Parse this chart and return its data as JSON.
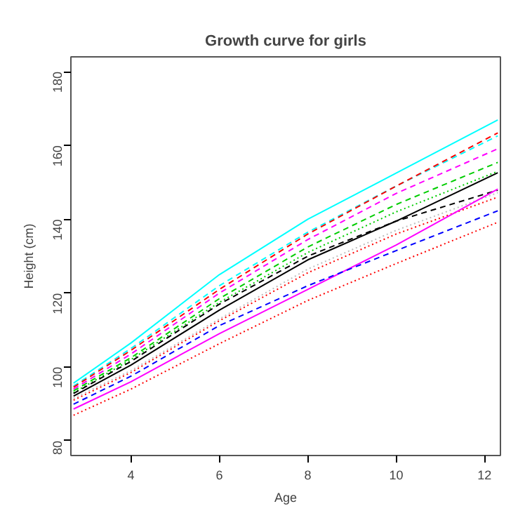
{
  "chart_data": {
    "type": "line",
    "title": "Growth curve for girls",
    "xlabel": "Age",
    "ylabel": "Height (cm)",
    "x": [
      2.7,
      4,
      6,
      8,
      10,
      12.3
    ],
    "xlim": [
      2.64,
      12.36
    ],
    "ylim": [
      76,
      184
    ],
    "xticks": [
      4,
      6,
      8,
      10,
      12
    ],
    "yticks": [
      80,
      100,
      120,
      140,
      160,
      180
    ],
    "grid": false,
    "series": [
      {
        "color": "#00ffff",
        "line_style": "solid",
        "values": [
          95.6,
          106.5,
          125,
          140,
          152.5,
          166.9
        ]
      },
      {
        "color": "#00ffff",
        "line_style": "dashed",
        "values": [
          94.8,
          105,
          122,
          136.5,
          149,
          162.6
        ]
      },
      {
        "color": "#ff0000",
        "line_style": "dashed",
        "values": [
          94.5,
          104.5,
          121,
          136,
          149,
          163.4
        ]
      },
      {
        "color": "#ff00ff",
        "line_style": "dashed",
        "values": [
          94,
          103.5,
          120,
          134.5,
          147,
          159.1
        ]
      },
      {
        "color": "#00cd00",
        "line_style": "dashed",
        "values": [
          93.5,
          102.5,
          118.5,
          132.5,
          144,
          155.4
        ]
      },
      {
        "color": "#00cd00",
        "line_style": "dotted",
        "values": [
          93,
          102,
          117.5,
          131,
          142,
          153
        ]
      },
      {
        "color": "#000000",
        "line_style": "dashed",
        "values": [
          92.8,
          101.5,
          117,
          130,
          139.5,
          147.9
        ]
      },
      {
        "color": "#000000",
        "line_style": "solid",
        "values": [
          92.1,
          100.5,
          115.4,
          129,
          139.5,
          152.6
        ]
      },
      {
        "color": "#bebebe",
        "line_style": "dotted",
        "values": [
          91.5,
          99,
          113,
          126.5,
          137,
          147.2
        ]
      },
      {
        "color": "#ff0000",
        "line_style": "dotted",
        "values": [
          91,
          98.5,
          112.5,
          125.5,
          136,
          146
        ]
      },
      {
        "color": "#ff00ff",
        "line_style": "solid",
        "values": [
          88.6,
          96,
          109,
          121,
          133,
          148.2
        ]
      },
      {
        "color": "#0000ff",
        "line_style": "dashed",
        "values": [
          89.9,
          97.5,
          111.2,
          122,
          131.5,
          142.3
        ]
      },
      {
        "color": "#ff0000",
        "line_style": "dotted",
        "values": [
          86.9,
          94,
          106.3,
          118,
          128,
          139.2
        ]
      }
    ]
  }
}
